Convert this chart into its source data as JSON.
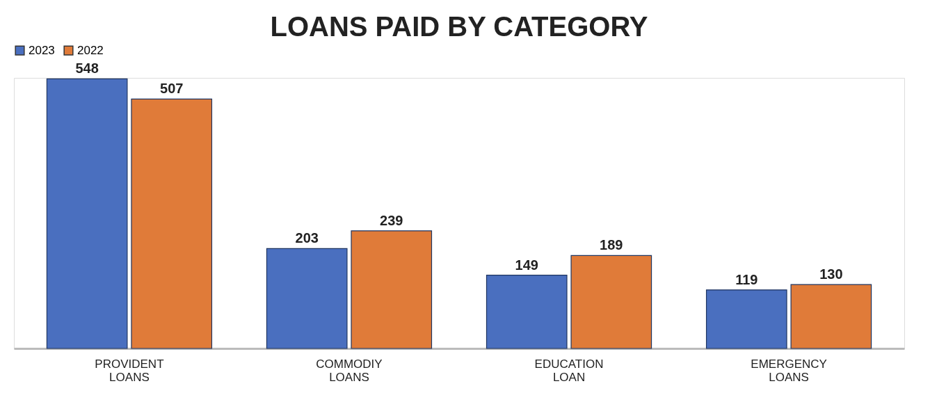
{
  "chart_data": {
    "type": "bar",
    "title": "LOANS PAID BY CATEGORY",
    "categories": [
      "PROVIDENT LOANS",
      "COMMODIY LOANS",
      "EDUCATION LOAN",
      "EMERGENCY LOANS"
    ],
    "series": [
      {
        "name": "2023",
        "color": "#4a6fbf",
        "values": [
          548,
          203,
          149,
          119
        ]
      },
      {
        "name": "2022",
        "color": "#e07b39",
        "values": [
          507,
          239,
          189,
          130
        ]
      }
    ],
    "data_labels": true,
    "legend": "top",
    "tick_labels": "x",
    "grid": false
  }
}
